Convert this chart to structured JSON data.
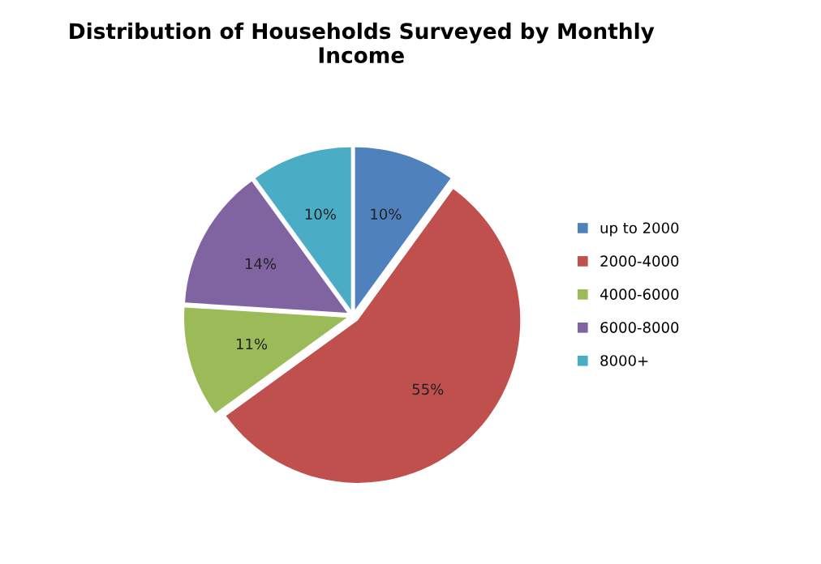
{
  "chart_data": {
    "type": "pie",
    "title": "Distribution of Households Surveyed by Monthly Income",
    "categories": [
      "up to 2000",
      "2000-4000",
      "4000-6000",
      "6000-8000",
      "8000+"
    ],
    "values": [
      10,
      55,
      11,
      14,
      10
    ],
    "value_labels": [
      "10%",
      "55%",
      "11%",
      "14%",
      "10%"
    ],
    "colors": [
      "#4f81bd",
      "#c0504d",
      "#9bbb59",
      "#8064a2",
      "#4bacc6"
    ],
    "legend": "right"
  }
}
